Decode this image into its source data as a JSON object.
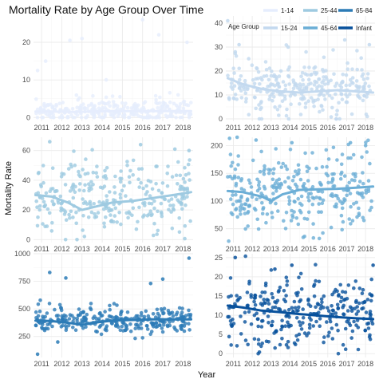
{
  "chart_data": {
    "type": "scatter",
    "title": "Mortality Rate by Age Group Over Time",
    "xlabel": "Year",
    "ylabel": "Mortality Rate",
    "x_ticks": [
      "2011",
      "2012",
      "2013",
      "2014",
      "2015",
      "2016",
      "2017",
      "2018"
    ],
    "xlim": [
      2010.6,
      2018.5
    ],
    "grid": true,
    "legend": {
      "title": "Age Group",
      "placement": "top-right",
      "entries": [
        {
          "label": "1-14",
          "color": "#e6edfd"
        },
        {
          "label": "15-24",
          "color": "#c3d9ef"
        },
        {
          "label": "25-44",
          "color": "#9ecae1"
        },
        {
          "label": "45-64",
          "color": "#6baed6"
        },
        {
          "label": "65-84",
          "color": "#2c7bb6"
        },
        {
          "label": "Infant",
          "color": "#08519c"
        }
      ]
    },
    "panels": [
      {
        "name": "1-14",
        "color": "#e6edfd",
        "ylim": [
          -1,
          27
        ],
        "yticks": [
          "0",
          "10",
          "20"
        ],
        "ytick_values": [
          0,
          10,
          20
        ],
        "mean": 1.8,
        "spread": 1.6,
        "outliers": [
          [
            2010.8,
            12.5
          ],
          [
            2011.2,
            15
          ],
          [
            2013.0,
            21
          ],
          [
            2012.4,
            20.5
          ],
          [
            2016.0,
            26
          ],
          [
            2016.8,
            22
          ],
          [
            2018.2,
            20
          ],
          [
            2014.2,
            10
          ]
        ],
        "trend": [
          [
            2010.7,
            1.6
          ],
          [
            2011.5,
            1.6
          ],
          [
            2012.5,
            1.5
          ],
          [
            2013.5,
            1.6
          ],
          [
            2014.5,
            1.7
          ],
          [
            2015.5,
            1.7
          ],
          [
            2016.5,
            1.7
          ],
          [
            2017.5,
            1.7
          ],
          [
            2018.4,
            1.7
          ]
        ]
      },
      {
        "name": "15-24",
        "color": "#c3d9ef",
        "ylim": [
          -1,
          43
        ],
        "yticks": [
          "0",
          "10",
          "20",
          "30",
          "40"
        ],
        "ytick_values": [
          0,
          10,
          20,
          30,
          40
        ],
        "mean": 12.5,
        "spread": 5.5,
        "outliers": [
          [
            2010.7,
            41
          ],
          [
            2011.3,
            31
          ],
          [
            2016.9,
            33
          ],
          [
            2018.2,
            31
          ],
          [
            2013.9,
            30
          ],
          [
            2011.1,
            28
          ]
        ],
        "trend": [
          [
            2010.7,
            17
          ],
          [
            2011.5,
            14.5
          ],
          [
            2012.5,
            12.5
          ],
          [
            2013.5,
            11.5
          ],
          [
            2014.5,
            11
          ],
          [
            2015.5,
            11.5
          ],
          [
            2016.5,
            12
          ],
          [
            2017.5,
            11.5
          ],
          [
            2018.4,
            11
          ]
        ]
      },
      {
        "name": "25-44",
        "color": "#9ecae1",
        "ylim": [
          -2,
          69
        ],
        "yticks": [
          "0",
          "20",
          "40",
          "60"
        ],
        "ytick_values": [
          0,
          20,
          40,
          60
        ],
        "mean": 27,
        "spread": 12,
        "outliers": [
          [
            2011.4,
            66
          ],
          [
            2015.9,
            64
          ],
          [
            2017.6,
            61
          ],
          [
            2018.3,
            60
          ]
        ],
        "trend": [
          [
            2010.7,
            30
          ],
          [
            2011.5,
            29
          ],
          [
            2012.3,
            25
          ],
          [
            2013.0,
            20
          ],
          [
            2013.6,
            22
          ],
          [
            2014.5,
            25
          ],
          [
            2015.5,
            26
          ],
          [
            2016.5,
            28
          ],
          [
            2017.5,
            30
          ],
          [
            2018.4,
            32
          ]
        ]
      },
      {
        "name": "45-64",
        "color": "#6baed6",
        "ylim": [
          25,
          215
        ],
        "yticks": [
          "50",
          "100",
          "150",
          "200"
        ],
        "ytick_values": [
          50,
          100,
          150,
          200
        ],
        "mean": 118,
        "spread": 35,
        "outliers": [
          [
            2010.8,
            213
          ],
          [
            2011.2,
            215
          ],
          [
            2012.2,
            210
          ],
          [
            2014.1,
            205
          ],
          [
            2017.2,
            205
          ],
          [
            2018.0,
            200
          ]
        ],
        "trend": [
          [
            2010.7,
            118
          ],
          [
            2011.5,
            116
          ],
          [
            2012.5,
            108
          ],
          [
            2013.0,
            100
          ],
          [
            2013.6,
            112
          ],
          [
            2014.5,
            120
          ],
          [
            2015.5,
            121
          ],
          [
            2016.5,
            122
          ],
          [
            2017.5,
            124
          ],
          [
            2018.4,
            126
          ]
        ]
      },
      {
        "name": "65-84",
        "color": "#2c7bb6",
        "ylim": [
          60,
          1000
        ],
        "yticks": [
          "250",
          "500",
          "750",
          "1000"
        ],
        "ytick_values": [
          250,
          500,
          750,
          1000
        ],
        "mean": 400,
        "spread": 60,
        "outliers": [
          [
            2011.4,
            830
          ],
          [
            2012.2,
            780
          ],
          [
            2016.4,
            730
          ],
          [
            2017.0,
            770
          ],
          [
            2018.3,
            960
          ],
          [
            2010.8,
            90
          ],
          [
            2011.8,
            200
          ]
        ],
        "trend": [
          [
            2010.7,
            395
          ],
          [
            2011.5,
            390
          ],
          [
            2012.5,
            370
          ],
          [
            2013.0,
            355
          ],
          [
            2013.6,
            375
          ],
          [
            2014.5,
            395
          ],
          [
            2015.5,
            400
          ],
          [
            2016.5,
            405
          ],
          [
            2017.5,
            405
          ],
          [
            2018.4,
            405
          ]
        ]
      },
      {
        "name": "Infant",
        "color": "#08519c",
        "ylim": [
          -1,
          26
        ],
        "yticks": [
          "0",
          "5",
          "10",
          "15",
          "20",
          "25"
        ],
        "ytick_values": [
          0,
          5,
          10,
          15,
          20,
          25
        ],
        "mean": 10.5,
        "spread": 4.5,
        "outliers": [
          [
            2011.1,
            25
          ],
          [
            2013.2,
            22
          ],
          [
            2014.1,
            23
          ],
          [
            2018.4,
            23
          ]
        ],
        "trend": [
          [
            2010.7,
            12.5
          ],
          [
            2011.5,
            12
          ],
          [
            2012.5,
            11.2
          ],
          [
            2013.5,
            10.8
          ],
          [
            2014.5,
            10.3
          ],
          [
            2015.5,
            9.9
          ],
          [
            2016.5,
            9.5
          ],
          [
            2017.5,
            9.2
          ],
          [
            2018.4,
            9
          ]
        ]
      }
    ]
  }
}
